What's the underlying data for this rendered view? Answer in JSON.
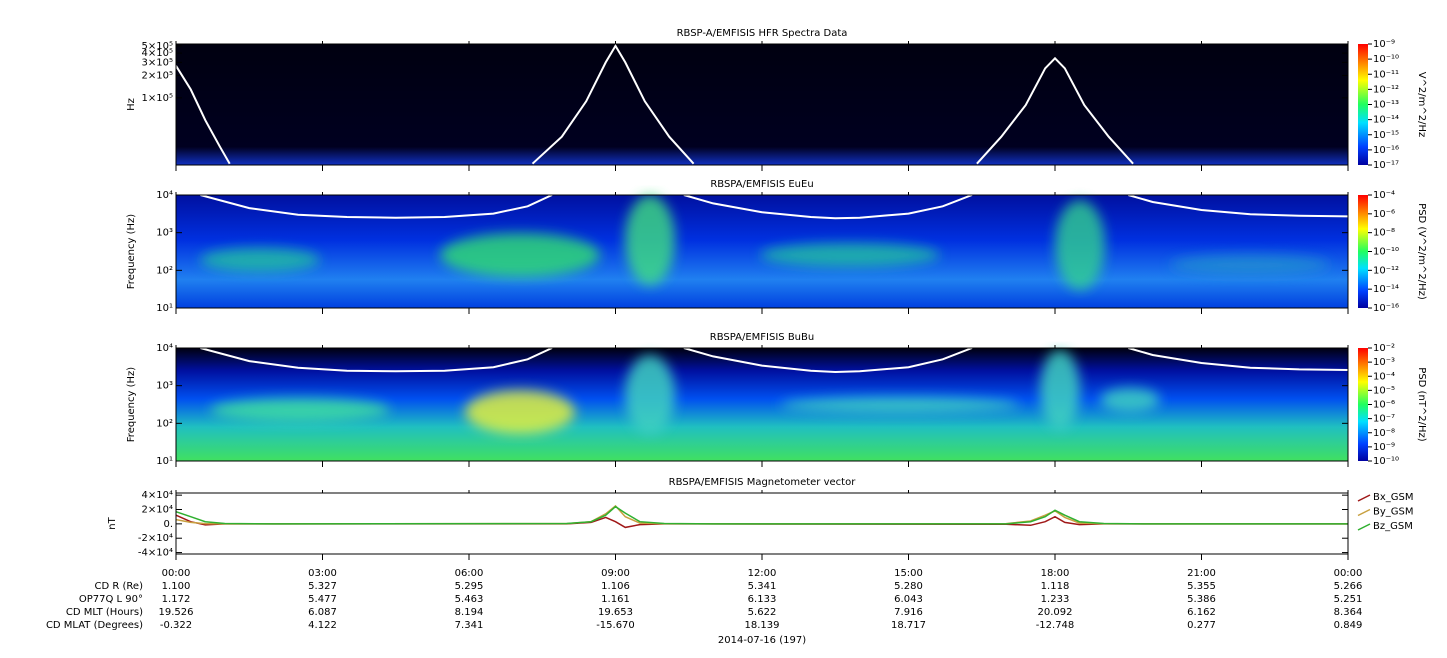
{
  "chart_data": [
    {
      "type": "spectrogram",
      "title": "RBSP-A/EMFISIS  HFR Spectra Data",
      "ylabel": "Hz",
      "log_y": true,
      "ylim": [
        12500,
        530000
      ],
      "yticks": [
        {
          "value": 500000,
          "label": "5×10⁵"
        },
        {
          "value": 400000,
          "label": "4×10⁵"
        },
        {
          "value": 300000,
          "label": "3×10⁵"
        },
        {
          "value": 200000,
          "label": "2×10⁵"
        },
        {
          "value": 100000,
          "label": "1×10⁵"
        }
      ],
      "colorbar": {
        "label": "V^2/m^2/Hz",
        "clim": [
          1e-17,
          1e-09
        ],
        "ticks": [
          {
            "value": 1e-09,
            "label": "10⁻⁹"
          },
          {
            "value": 1e-10,
            "label": "10⁻¹⁰"
          },
          {
            "value": 1e-11,
            "label": "10⁻¹¹"
          },
          {
            "value": 1e-12,
            "label": "10⁻¹²"
          },
          {
            "value": 1e-13,
            "label": "10⁻¹³"
          },
          {
            "value": 1e-14,
            "label": "10⁻¹⁴"
          },
          {
            "value": 1e-15,
            "label": "10⁻¹⁵"
          },
          {
            "value": 1e-16,
            "label": "10⁻¹⁶"
          },
          {
            "value": 1e-17,
            "label": "10⁻¹⁷"
          }
        ]
      },
      "series": [
        {
          "color": "#ffffff",
          "x": [
            0,
            0.3,
            0.6,
            0.9,
            1.1,
            2,
            7.3,
            7.9,
            8.4,
            8.8,
            9.0,
            9.2,
            9.6,
            10.1,
            10.6,
            16,
            16.4,
            16.9,
            17.4,
            17.8,
            18.0,
            18.2,
            18.6,
            19.1,
            19.6
          ],
          "values": [
            270000,
            130000,
            50000,
            22000,
            13000,
            null,
            13000,
            30000,
            90000,
            300000,
            500000,
            300000,
            90000,
            30000,
            13000,
            null,
            13000,
            30000,
            80000,
            250000,
            340000,
            250000,
            80000,
            30000,
            13000
          ]
        }
      ]
    },
    {
      "type": "spectrogram",
      "title": "RBSPA/EMFISIS  EuEu",
      "ylabel": "Frequency (Hz)",
      "log_y": true,
      "ylim": [
        10,
        10000
      ],
      "yticks": [
        {
          "value": 10,
          "label": "10¹"
        },
        {
          "value": 100,
          "label": "10²"
        },
        {
          "value": 1000,
          "label": "10³"
        },
        {
          "value": 10000,
          "label": "10⁴"
        }
      ],
      "colorbar": {
        "label": "PSD (V^2/m^2/Hz)",
        "clim": [
          1e-16,
          0.0001
        ],
        "ticks": [
          {
            "value": 0.0001,
            "label": "10⁻⁴"
          },
          {
            "value": 1e-06,
            "label": "10⁻⁶"
          },
          {
            "value": 1e-08,
            "label": "10⁻⁸"
          },
          {
            "value": 1e-10,
            "label": "10⁻¹⁰"
          },
          {
            "value": 1e-12,
            "label": "10⁻¹²"
          },
          {
            "value": 1e-14,
            "label": "10⁻¹⁴"
          },
          {
            "value": 1e-16,
            "label": "10⁻¹⁶"
          }
        ]
      },
      "series": [
        {
          "color": "#ffffff",
          "x": [
            0.5,
            1.5,
            2.5,
            3.5,
            4.5,
            5.5,
            6.5,
            7.2,
            7.7,
            9,
            10.4,
            11,
            12,
            13,
            13.5,
            14,
            15,
            15.7,
            16.3,
            18,
            19.5,
            20,
            21,
            22,
            23,
            24
          ],
          "values": [
            10000,
            4500,
            3000,
            2600,
            2500,
            2600,
            3200,
            5000,
            10000,
            null,
            10000,
            6000,
            3500,
            2600,
            2400,
            2500,
            3200,
            5000,
            10000,
            null,
            10000,
            6500,
            4000,
            3100,
            2800,
            2700
          ]
        }
      ]
    },
    {
      "type": "spectrogram",
      "title": "RBSPA/EMFISIS  BuBu",
      "ylabel": "Frequency (Hz)",
      "log_y": true,
      "ylim": [
        10,
        10000
      ],
      "yticks": [
        {
          "value": 10,
          "label": "10¹"
        },
        {
          "value": 100,
          "label": "10²"
        },
        {
          "value": 1000,
          "label": "10³"
        },
        {
          "value": 10000,
          "label": "10⁴"
        }
      ],
      "colorbar": {
        "label": "PSD (nT^2/Hz)",
        "clim": [
          1e-10,
          0.01
        ],
        "ticks": [
          {
            "value": 0.01,
            "label": "10⁻²"
          },
          {
            "value": 0.001,
            "label": "10⁻³"
          },
          {
            "value": 0.0001,
            "label": "10⁻⁴"
          },
          {
            "value": 1e-05,
            "label": "10⁻⁵"
          },
          {
            "value": 1e-06,
            "label": "10⁻⁶"
          },
          {
            "value": 1e-07,
            "label": "10⁻⁷"
          },
          {
            "value": 1e-08,
            "label": "10⁻⁸"
          },
          {
            "value": 1e-09,
            "label": "10⁻⁹"
          },
          {
            "value": 1e-10,
            "label": "10⁻¹⁰"
          }
        ]
      },
      "series": [
        {
          "color": "#ffffff",
          "x": [
            0.5,
            1.5,
            2.5,
            3.5,
            4.5,
            5.5,
            6.5,
            7.2,
            7.7,
            9,
            10.4,
            11,
            12,
            13,
            13.5,
            14,
            15,
            15.7,
            16.3,
            18,
            19.5,
            20,
            21,
            22,
            23,
            24
          ],
          "values": [
            10000,
            4500,
            3000,
            2500,
            2400,
            2500,
            3100,
            5000,
            10000,
            null,
            10000,
            6000,
            3400,
            2500,
            2300,
            2400,
            3100,
            5000,
            10000,
            null,
            10000,
            6500,
            4000,
            3000,
            2700,
            2600
          ]
        }
      ]
    },
    {
      "type": "line",
      "title": "RBSPA/EMFISIS  Magnetometer vector",
      "ylabel": "nT",
      "log_y": false,
      "ylim": [
        -42000,
        43000
      ],
      "yticks": [
        {
          "value": 40000,
          "label": "4×10⁴"
        },
        {
          "value": 20000,
          "label": "2×10⁴"
        },
        {
          "value": 0,
          "label": "0."
        },
        {
          "value": -20000,
          "label": "-2×10⁴"
        },
        {
          "value": -40000,
          "label": "-4×10⁴"
        }
      ],
      "x": [
        0,
        0.3,
        0.6,
        1,
        2,
        8,
        8.5,
        8.8,
        9.0,
        9.2,
        9.5,
        10,
        11,
        17,
        17.5,
        17.8,
        18.0,
        18.2,
        18.5,
        19,
        20,
        24
      ],
      "series": [
        {
          "name": "Bx_GSM",
          "color": "#a01818",
          "values": [
            12000,
            3000,
            -1500,
            0,
            0,
            0,
            2000,
            9000,
            3000,
            -5000,
            -1000,
            0,
            0,
            -500,
            -2000,
            3000,
            10000,
            2000,
            -1000,
            0,
            0,
            0
          ]
        },
        {
          "name": "By_GSM",
          "color": "#c8a040",
          "values": [
            6000,
            2000,
            300,
            0,
            0,
            300,
            3000,
            14000,
            25000,
            10000,
            1000,
            200,
            0,
            300,
            4000,
            12000,
            18000,
            9000,
            1000,
            200,
            0,
            0
          ]
        },
        {
          "name": "Bz_GSM",
          "color": "#30b030",
          "values": [
            17000,
            10000,
            3000,
            500,
            0,
            500,
            3000,
            12000,
            24000,
            15000,
            3000,
            500,
            0,
            0,
            3000,
            10000,
            19000,
            12000,
            3000,
            500,
            0,
            0
          ]
        }
      ]
    }
  ],
  "time_axis": {
    "xlim": [
      0,
      24
    ],
    "xticks": [
      {
        "value": 0,
        "label": "00:00"
      },
      {
        "value": 3,
        "label": "03:00"
      },
      {
        "value": 6,
        "label": "06:00"
      },
      {
        "value": 9,
        "label": "09:00"
      },
      {
        "value": 12,
        "label": "12:00"
      },
      {
        "value": 15,
        "label": "15:00"
      },
      {
        "value": 18,
        "label": "18:00"
      },
      {
        "value": 21,
        "label": "21:00"
      },
      {
        "value": 24,
        "label": "00:00"
      }
    ],
    "date_label": "2014-07-16 (197)"
  },
  "ephemeris": [
    {
      "label": "CD R (Re)",
      "values": [
        "1.100",
        "5.327",
        "5.295",
        "1.106",
        "5.341",
        "5.280",
        "1.118",
        "5.355",
        "5.266"
      ]
    },
    {
      "label": "OP77Q L 90°",
      "values": [
        "1.172",
        "5.477",
        "5.463",
        "1.161",
        "6.133",
        "6.043",
        "1.233",
        "5.386",
        "5.251"
      ]
    },
    {
      "label": "CD MLT (Hours)",
      "values": [
        "19.526",
        "6.087",
        "8.194",
        "19.653",
        "5.622",
        "7.916",
        "20.092",
        "6.162",
        "8.364"
      ]
    },
    {
      "label": "CD MLAT (Degrees)",
      "values": [
        "-0.322",
        "4.122",
        "7.341",
        "-15.670",
        "18.139",
        "18.717",
        "-12.748",
        "0.277",
        "0.849"
      ]
    }
  ]
}
